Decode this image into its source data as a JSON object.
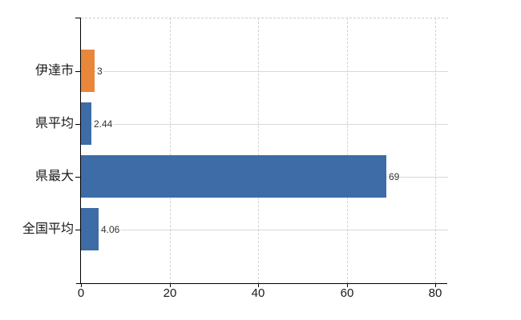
{
  "chart_style": {
    "background": "#ffffff",
    "axis_color": "#000000",
    "horizontal_gridline_color": "#d6dad6",
    "vertical_gridline_color": "#ccd3cc",
    "bar_blue": "#3d6ca6",
    "bar_orange": "#e8863a",
    "value_label_color": "#333333",
    "tick_label_color": "#1a1a1a"
  },
  "chart_data": {
    "type": "bar",
    "orientation": "horizontal",
    "title": "",
    "xlabel": "",
    "ylabel": "",
    "categories": [
      "伊達市",
      "県平均",
      "県最大",
      "全国平均"
    ],
    "values": [
      3,
      2.44,
      69,
      4.06
    ],
    "value_labels": [
      "3",
      "2.44",
      "69",
      "4.06"
    ],
    "bar_colors": [
      "#e8863a",
      "#3d6ca6",
      "#3d6ca6",
      "#3d6ca6"
    ],
    "highlight_category": "伊達市",
    "x_ticks": [
      0,
      20,
      40,
      60,
      80
    ],
    "x_tick_labels": [
      "0",
      "20",
      "40",
      "60",
      "80"
    ],
    "xlim": [
      0,
      82.7
    ],
    "grid": "vertical dashed gridlines at x ticks, horizontal gridline at each category center",
    "legend": "none"
  }
}
